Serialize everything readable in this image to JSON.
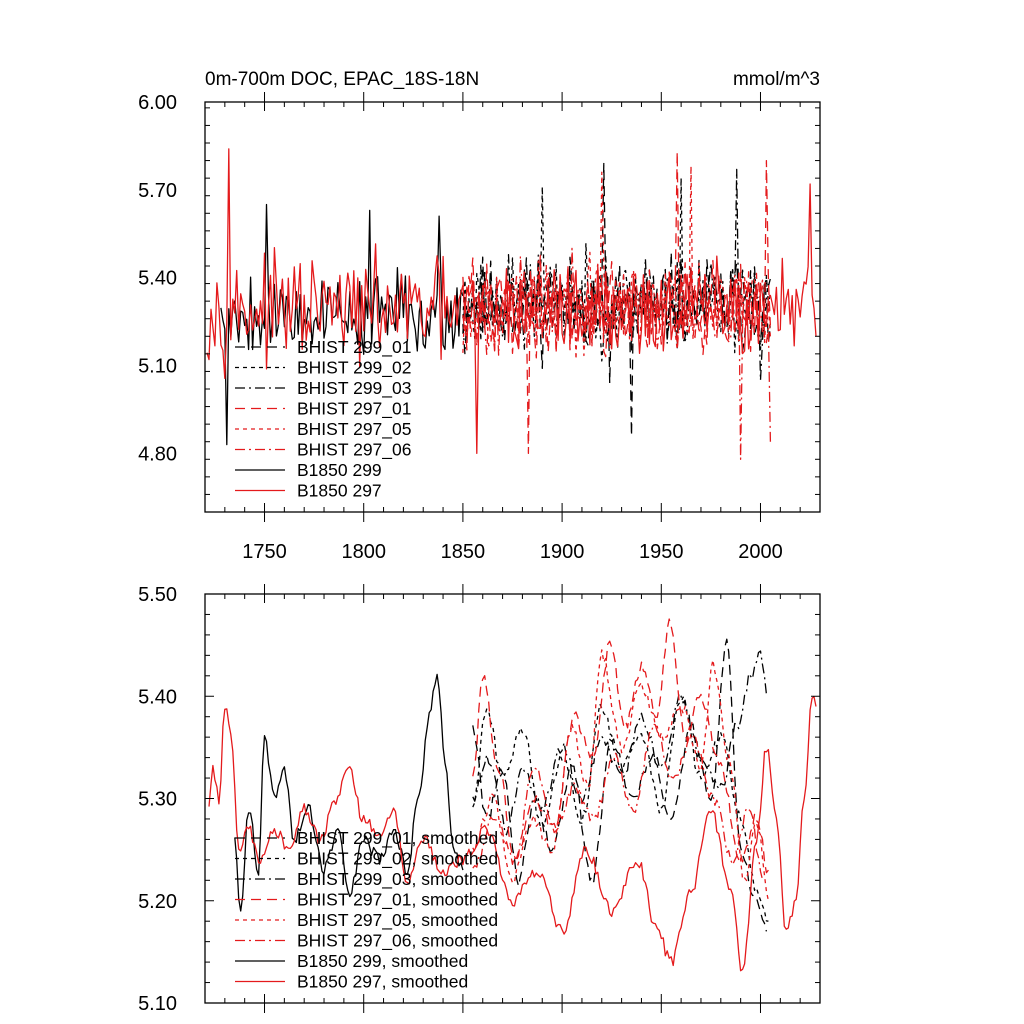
{
  "colors": {
    "black": "#000000",
    "red": "#e41a1c"
  },
  "chart_data": [
    {
      "type": "line",
      "title": "0m-700m DOC, EPAC_18S-18N",
      "units": "mmol/m^3",
      "xlim": [
        1720,
        2030
      ],
      "ylim": [
        4.6,
        6.0
      ],
      "x_ticks": [
        1750,
        1800,
        1850,
        1900,
        1950,
        2000
      ],
      "x_tick_labels": [
        "1750",
        "1800",
        "1850",
        "1900",
        "1950",
        "2000"
      ],
      "y_ticks": [
        4.8,
        5.1,
        5.4,
        5.7,
        6.0
      ],
      "y_tick_labels": [
        "4.80",
        "5.10",
        "5.40",
        "5.70",
        "6.00"
      ],
      "legend_position": "lower-left",
      "series": [
        {
          "name": "BHIST 299_01",
          "color": "#000000",
          "dash": "long-dash",
          "x_range": [
            1850,
            2005
          ],
          "mean": 5.31,
          "amp": 0.15,
          "seed": 11,
          "peaks": [
            [
              1921,
              5.79
            ],
            [
              1924,
              5.04
            ],
            [
              1935,
              4.86
            ]
          ]
        },
        {
          "name": "BHIST 299_02",
          "color": "#000000",
          "dash": "short-dash",
          "x_range": [
            1850,
            2005
          ],
          "mean": 5.31,
          "amp": 0.14,
          "seed": 23,
          "peaks": [
            [
              1890,
              5.71
            ],
            [
              1960,
              5.74
            ]
          ]
        },
        {
          "name": "BHIST 299_03",
          "color": "#000000",
          "dash": "dash-dot",
          "x_range": [
            1850,
            2005
          ],
          "mean": 5.31,
          "amp": 0.14,
          "seed": 37,
          "peaks": [
            [
              1988,
              5.77
            ],
            [
              2000,
              5.05
            ]
          ]
        },
        {
          "name": "BHIST 297_01",
          "color": "#e41a1c",
          "dash": "long-dash",
          "x_range": [
            1850,
            2005
          ],
          "mean": 5.3,
          "amp": 0.15,
          "seed": 41,
          "peaks": [
            [
              1958,
              5.83
            ],
            [
              1883,
              4.8
            ],
            [
              2003,
              5.8
            ]
          ]
        },
        {
          "name": "BHIST 297_05",
          "color": "#e41a1c",
          "dash": "short-dash",
          "x_range": [
            1850,
            2005
          ],
          "mean": 5.3,
          "amp": 0.14,
          "seed": 53,
          "peaks": [
            [
              1920,
              5.76
            ],
            [
              1965,
              5.78
            ]
          ]
        },
        {
          "name": "BHIST 297_06",
          "color": "#e41a1c",
          "dash": "dash-dot",
          "x_range": [
            1850,
            2005
          ],
          "mean": 5.3,
          "amp": 0.14,
          "seed": 67,
          "peaks": [
            [
              1990,
              4.78
            ],
            [
              2005,
              4.84
            ]
          ]
        },
        {
          "name": "B1850 299",
          "color": "#000000",
          "dash": "solid",
          "x_range": [
            1728,
            1850
          ],
          "mean": 5.28,
          "amp": 0.13,
          "seed": 79,
          "peaks": [
            [
              1731,
              4.83
            ],
            [
              1751,
              5.65
            ],
            [
              1803,
              5.63
            ],
            [
              1838,
              5.61
            ]
          ]
        },
        {
          "name": "B1850 297",
          "color": "#e41a1c",
          "dash": "solid",
          "x_range": [
            1721,
            2028
          ],
          "mean": 5.29,
          "amp": 0.15,
          "seed": 97,
          "peaks": [
            [
              1732,
              5.84
            ],
            [
              1857,
              4.8
            ],
            [
              2025,
              5.72
            ],
            [
              2028,
              5.2
            ]
          ]
        }
      ]
    },
    {
      "type": "line",
      "xlim": [
        1720,
        2030
      ],
      "ylim": [
        5.1,
        5.5
      ],
      "x_ticks": [
        1750,
        1800,
        1850,
        1900,
        1950,
        2000
      ],
      "y_ticks": [
        5.1,
        5.2,
        5.3,
        5.4,
        5.5
      ],
      "y_tick_labels": [
        "5.10",
        "5.20",
        "5.30",
        "5.40",
        "5.50"
      ],
      "legend_position": "lower-left",
      "series": [
        {
          "name": "BHIST 299_01, smoothed",
          "color": "#000000",
          "dash": "long-dash",
          "x_range": [
            1855,
            2005
          ],
          "knots": [
            [
              1855,
              5.37
            ],
            [
              1862,
              5.28
            ],
            [
              1870,
              5.33
            ],
            [
              1878,
              5.22
            ],
            [
              1886,
              5.3
            ],
            [
              1895,
              5.25
            ],
            [
              1905,
              5.33
            ],
            [
              1915,
              5.22
            ],
            [
              1925,
              5.36
            ],
            [
              1935,
              5.3
            ],
            [
              1945,
              5.34
            ],
            [
              1955,
              5.28
            ],
            [
              1965,
              5.37
            ],
            [
              1975,
              5.3
            ],
            [
              1983,
              5.45
            ],
            [
              1990,
              5.25
            ],
            [
              1997,
              5.2
            ],
            [
              2003,
              5.17
            ]
          ]
        },
        {
          "name": "BHIST 299_02, smoothed",
          "color": "#000000",
          "dash": "short-dash",
          "x_range": [
            1855,
            2005
          ],
          "knots": [
            [
              1855,
              5.29
            ],
            [
              1862,
              5.39
            ],
            [
              1870,
              5.32
            ],
            [
              1880,
              5.37
            ],
            [
              1890,
              5.27
            ],
            [
              1900,
              5.34
            ],
            [
              1910,
              5.28
            ],
            [
              1920,
              5.39
            ],
            [
              1930,
              5.33
            ],
            [
              1940,
              5.36
            ],
            [
              1950,
              5.29
            ],
            [
              1960,
              5.4
            ],
            [
              1970,
              5.32
            ],
            [
              1980,
              5.36
            ],
            [
              1990,
              5.28
            ],
            [
              1998,
              5.21
            ],
            [
              2004,
              5.18
            ]
          ]
        },
        {
          "name": "BHIST 299_03, smoothed",
          "color": "#000000",
          "dash": "dash-dot",
          "x_range": [
            1855,
            2005
          ],
          "knots": [
            [
              1855,
              5.3
            ],
            [
              1863,
              5.34
            ],
            [
              1872,
              5.27
            ],
            [
              1880,
              5.33
            ],
            [
              1890,
              5.29
            ],
            [
              1900,
              5.35
            ],
            [
              1910,
              5.3
            ],
            [
              1920,
              5.36
            ],
            [
              1930,
              5.32
            ],
            [
              1940,
              5.38
            ],
            [
              1950,
              5.33
            ],
            [
              1960,
              5.4
            ],
            [
              1970,
              5.34
            ],
            [
              1980,
              5.31
            ],
            [
              1988,
              5.37
            ],
            [
              1995,
              5.42
            ],
            [
              2000,
              5.44
            ],
            [
              2004,
              5.4
            ]
          ]
        },
        {
          "name": "BHIST 297_01, smoothed",
          "color": "#e41a1c",
          "dash": "long-dash",
          "x_range": [
            1855,
            2005
          ],
          "knots": [
            [
              1855,
              5.32
            ],
            [
              1860,
              5.42
            ],
            [
              1868,
              5.33
            ],
            [
              1876,
              5.24
            ],
            [
              1886,
              5.3
            ],
            [
              1896,
              5.27
            ],
            [
              1906,
              5.38
            ],
            [
              1916,
              5.34
            ],
            [
              1924,
              5.45
            ],
            [
              1932,
              5.37
            ],
            [
              1940,
              5.43
            ],
            [
              1948,
              5.38
            ],
            [
              1954,
              5.47
            ],
            [
              1962,
              5.36
            ],
            [
              1970,
              5.4
            ],
            [
              1980,
              5.33
            ],
            [
              1990,
              5.24
            ],
            [
              1998,
              5.28
            ],
            [
              2004,
              5.23
            ]
          ]
        },
        {
          "name": "BHIST 297_05, smoothed",
          "color": "#e41a1c",
          "dash": "short-dash",
          "x_range": [
            1855,
            2005
          ],
          "knots": [
            [
              1855,
              5.25
            ],
            [
              1865,
              5.3
            ],
            [
              1875,
              5.22
            ],
            [
              1885,
              5.28
            ],
            [
              1895,
              5.25
            ],
            [
              1905,
              5.37
            ],
            [
              1913,
              5.31
            ],
            [
              1920,
              5.44
            ],
            [
              1930,
              5.35
            ],
            [
              1940,
              5.41
            ],
            [
              1950,
              5.36
            ],
            [
              1960,
              5.39
            ],
            [
              1970,
              5.33
            ],
            [
              1976,
              5.43
            ],
            [
              1984,
              5.34
            ],
            [
              1992,
              5.22
            ],
            [
              1998,
              5.28
            ],
            [
              2004,
              5.2
            ]
          ]
        },
        {
          "name": "BHIST 297_06, smoothed",
          "color": "#e41a1c",
          "dash": "dash-dot",
          "x_range": [
            1855,
            2005
          ],
          "knots": [
            [
              1855,
              5.23
            ],
            [
              1866,
              5.28
            ],
            [
              1876,
              5.24
            ],
            [
              1886,
              5.33
            ],
            [
              1896,
              5.27
            ],
            [
              1906,
              5.31
            ],
            [
              1916,
              5.28
            ],
            [
              1926,
              5.34
            ],
            [
              1936,
              5.29
            ],
            [
              1946,
              5.37
            ],
            [
              1956,
              5.32
            ],
            [
              1966,
              5.36
            ],
            [
              1976,
              5.3
            ],
            [
              1986,
              5.24
            ],
            [
              1994,
              5.29
            ],
            [
              2002,
              5.22
            ]
          ]
        },
        {
          "name": "B1850 299, smoothed",
          "color": "#000000",
          "dash": "solid",
          "x_range": [
            1735,
            1850
          ],
          "knots": [
            [
              1735,
              5.26
            ],
            [
              1738,
              5.19
            ],
            [
              1742,
              5.29
            ],
            [
              1747,
              5.23
            ],
            [
              1750,
              5.36
            ],
            [
              1755,
              5.3
            ],
            [
              1760,
              5.33
            ],
            [
              1765,
              5.26
            ],
            [
              1772,
              5.29
            ],
            [
              1780,
              5.23
            ],
            [
              1787,
              5.27
            ],
            [
              1793,
              5.21
            ],
            [
              1800,
              5.26
            ],
            [
              1808,
              5.24
            ],
            [
              1815,
              5.27
            ],
            [
              1822,
              5.23
            ],
            [
              1828,
              5.31
            ],
            [
              1833,
              5.38
            ],
            [
              1837,
              5.42
            ],
            [
              1841,
              5.34
            ],
            [
              1845,
              5.25
            ],
            [
              1850,
              5.23
            ]
          ]
        },
        {
          "name": "B1850 297, smoothed",
          "color": "#e41a1c",
          "dash": "solid",
          "x_range": [
            1722,
            2028
          ],
          "knots": [
            [
              1722,
              5.29
            ],
            [
              1724,
              5.33
            ],
            [
              1727,
              5.3
            ],
            [
              1730,
              5.39
            ],
            [
              1733,
              5.36
            ],
            [
              1737,
              5.25
            ],
            [
              1742,
              5.27
            ],
            [
              1748,
              5.24
            ],
            [
              1755,
              5.27
            ],
            [
              1762,
              5.25
            ],
            [
              1770,
              5.29
            ],
            [
              1778,
              5.26
            ],
            [
              1786,
              5.3
            ],
            [
              1792,
              5.33
            ],
            [
              1800,
              5.28
            ],
            [
              1808,
              5.26
            ],
            [
              1815,
              5.29
            ],
            [
              1822,
              5.22
            ],
            [
              1830,
              5.26
            ],
            [
              1840,
              5.23
            ],
            [
              1850,
              5.24
            ],
            [
              1862,
              5.27
            ],
            [
              1875,
              5.2
            ],
            [
              1888,
              5.23
            ],
            [
              1900,
              5.17
            ],
            [
              1912,
              5.25
            ],
            [
              1925,
              5.19
            ],
            [
              1938,
              5.24
            ],
            [
              1948,
              5.17
            ],
            [
              1955,
              5.14
            ],
            [
              1965,
              5.21
            ],
            [
              1975,
              5.29
            ],
            [
              1985,
              5.21
            ],
            [
              1991,
              5.13
            ],
            [
              1998,
              5.26
            ],
            [
              2003,
              5.35
            ],
            [
              2008,
              5.28
            ],
            [
              2013,
              5.17
            ],
            [
              2018,
              5.2
            ],
            [
              2022,
              5.3
            ],
            [
              2026,
              5.4
            ],
            [
              2028,
              5.39
            ]
          ]
        }
      ]
    }
  ]
}
